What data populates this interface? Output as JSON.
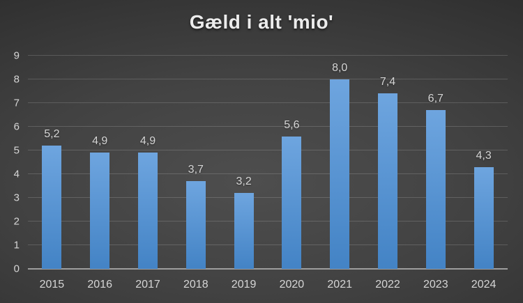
{
  "chart_data": {
    "type": "bar",
    "title": "Gæld i alt 'mio'",
    "categories": [
      "2015",
      "2016",
      "2017",
      "2018",
      "2019",
      "2020",
      "2021",
      "2022",
      "2023",
      "2024"
    ],
    "values": [
      5.2,
      4.9,
      4.9,
      3.7,
      3.2,
      5.6,
      8.0,
      7.4,
      6.7,
      4.3
    ],
    "value_labels": [
      "5,2",
      "4,9",
      "4,9",
      "3,7",
      "3,2",
      "5,6",
      "8,0",
      "7,4",
      "6,7",
      "4,3"
    ],
    "xlabel": "",
    "ylabel": "",
    "ylim": [
      0,
      9
    ],
    "yticks": [
      0,
      1,
      2,
      3,
      4,
      5,
      6,
      7,
      8,
      9
    ],
    "grid": true,
    "legend_position": "none",
    "colors": {
      "bar_top": "#6ea5df",
      "bar_bottom": "#4383c5",
      "background_center": "#4e4e4e",
      "background_edge": "#242424",
      "gridline": "rgba(255,255,255,0.16)",
      "axis_line": "#9e9e9e",
      "label_text": "#d6d6d6",
      "title_text": "#ececec"
    }
  }
}
